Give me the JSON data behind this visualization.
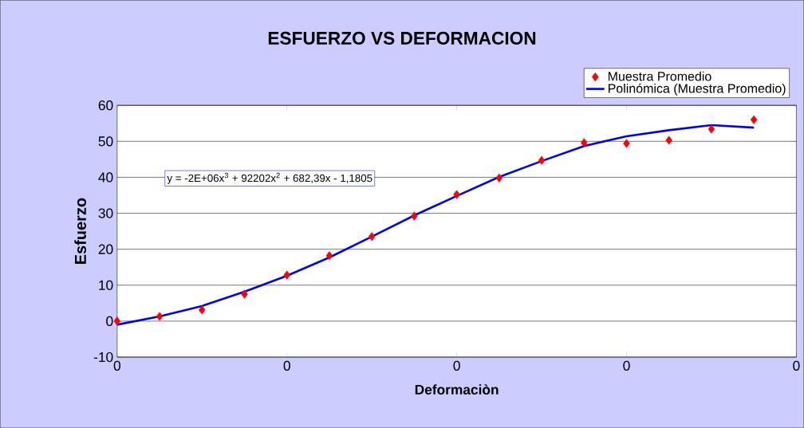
{
  "chart_data": {
    "type": "scatter",
    "title": "ESFUERZO VS DEFORMACION",
    "xlabel": "Deformaciòn",
    "ylabel": "Esfuerzo",
    "annotations": [
      "y = -2E+06x$^{3}$ + 92202x$^{2}$ + 682,39x - 1,1805"
    ],
    "x": [
      0,
      0.0025,
      0.005,
      0.0075,
      0.01,
      0.0125,
      0.015,
      0.0175,
      0.02,
      0.0225,
      0.025,
      0.0275,
      0.03,
      0.0325,
      0.035,
      0.0375
    ],
    "series": [
      {
        "name": "Muestra Promedio",
        "marker": "diamond",
        "color": "#ff0000",
        "values": [
          0,
          1.3,
          3.1,
          7.5,
          12.8,
          18.2,
          23.5,
          29.2,
          35.2,
          39.8,
          44.7,
          49.6,
          49.4,
          50.3,
          53.4,
          56.0
        ]
      },
      {
        "name": "Polinómica (Muestra Promedio)",
        "type": "line",
        "marker": "none",
        "line_style": "solid",
        "color": "#0000ff",
        "values": [
          -1,
          1.3,
          4.2,
          8.2,
          12.6,
          17.7,
          23.5,
          29.4,
          34.8,
          40.1,
          44.5,
          48.7,
          51.4,
          53.1,
          54.5,
          53.8
        ]
      }
    ],
    "xlim": [
      0,
      0.04
    ],
    "xticks": [
      {
        "value": 0,
        "label": "0"
      },
      {
        "value": 0.01,
        "label": "0"
      },
      {
        "value": 0.02,
        "label": "0"
      },
      {
        "value": 0.03,
        "label": "0"
      },
      {
        "value": 0.04,
        "label": "0"
      }
    ],
    "ylim": [
      -10,
      60
    ],
    "yticks": [
      -10,
      0,
      10,
      20,
      30,
      40,
      50,
      60
    ],
    "grid": "y",
    "legend": "top right"
  }
}
